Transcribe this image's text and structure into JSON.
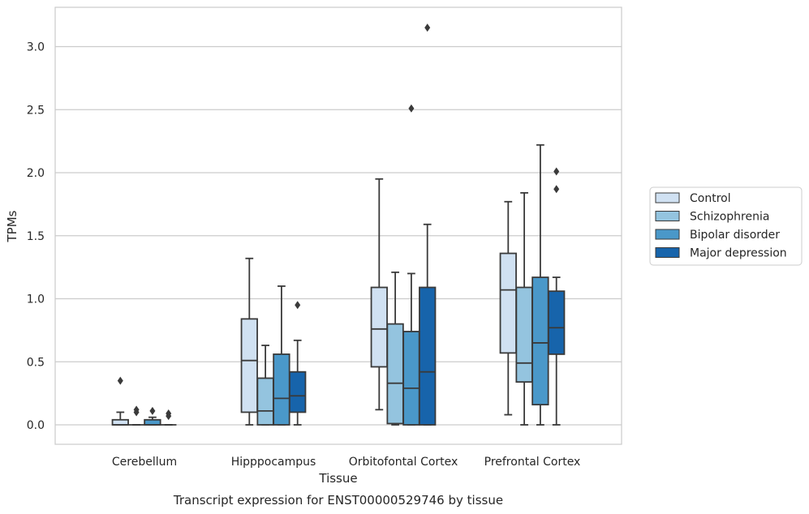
{
  "chart_data": {
    "type": "boxplot",
    "xlabel": "Tissue",
    "ylabel": "TPMs",
    "caption": "Transcript expression for ENST00000529746 by tissue",
    "ylim": [
      -0.15,
      3.3
    ],
    "yticks": [
      "0.0",
      "0.5",
      "1.0",
      "1.5",
      "2.0",
      "2.5",
      "3.0"
    ],
    "grid": true,
    "legend_position": "right",
    "categories": [
      "Cerebellum",
      "Hipppocampus",
      "Orbitofontal Cortex",
      "Prefrontal Cortex"
    ],
    "series": [
      {
        "name": "Control",
        "color": "#d0e1f2",
        "boxes": [
          {
            "whislo": 0.0,
            "q1": 0.0,
            "med": 0.0,
            "q3": 0.04,
            "whishi": 0.1,
            "fliers": [
              0.35
            ]
          },
          {
            "whislo": 0.0,
            "q1": 0.1,
            "med": 0.51,
            "q3": 0.84,
            "whishi": 1.32,
            "fliers": []
          },
          {
            "whislo": 0.12,
            "q1": 0.46,
            "med": 0.76,
            "q3": 1.09,
            "whishi": 1.95,
            "fliers": []
          },
          {
            "whislo": 0.08,
            "q1": 0.57,
            "med": 1.07,
            "q3": 1.36,
            "whishi": 1.77,
            "fliers": []
          }
        ]
      },
      {
        "name": "Schizophrenia",
        "color": "#94c4df",
        "boxes": [
          {
            "whislo": 0.0,
            "q1": 0.0,
            "med": 0.0,
            "q3": 0.0,
            "whishi": 0.0,
            "fliers": [
              0.1,
              0.12
            ]
          },
          {
            "whislo": 0.0,
            "q1": 0.0,
            "med": 0.11,
            "q3": 0.37,
            "whishi": 0.63,
            "fliers": []
          },
          {
            "whislo": 0.0,
            "q1": 0.01,
            "med": 0.33,
            "q3": 0.8,
            "whishi": 1.21,
            "fliers": []
          },
          {
            "whislo": 0.0,
            "q1": 0.34,
            "med": 0.49,
            "q3": 1.09,
            "whishi": 1.84,
            "fliers": []
          }
        ]
      },
      {
        "name": "Bipolar disorder",
        "color": "#4a98c9",
        "boxes": [
          {
            "whislo": 0.0,
            "q1": 0.0,
            "med": 0.0,
            "q3": 0.04,
            "whishi": 0.06,
            "fliers": [
              0.11
            ]
          },
          {
            "whislo": 0.0,
            "q1": 0.0,
            "med": 0.21,
            "q3": 0.56,
            "whishi": 1.1,
            "fliers": []
          },
          {
            "whislo": 0.0,
            "q1": 0.0,
            "med": 0.29,
            "q3": 0.74,
            "whishi": 1.2,
            "fliers": [
              2.51
            ]
          },
          {
            "whislo": 0.0,
            "q1": 0.16,
            "med": 0.65,
            "q3": 1.17,
            "whishi": 2.22,
            "fliers": []
          }
        ]
      },
      {
        "name": "Major depression",
        "color": "#1764ab",
        "boxes": [
          {
            "whislo": 0.0,
            "q1": 0.0,
            "med": 0.0,
            "q3": 0.0,
            "whishi": 0.0,
            "fliers": [
              0.07,
              0.09
            ]
          },
          {
            "whislo": 0.0,
            "q1": 0.1,
            "med": 0.23,
            "q3": 0.42,
            "whishi": 0.67,
            "fliers": [
              0.95
            ]
          },
          {
            "whislo": 0.0,
            "q1": 0.0,
            "med": 0.42,
            "q3": 1.09,
            "whishi": 1.59,
            "fliers": [
              3.15
            ]
          },
          {
            "whislo": 0.0,
            "q1": 0.56,
            "med": 0.77,
            "q3": 1.06,
            "whishi": 1.17,
            "fliers": [
              1.87,
              2.01
            ]
          }
        ]
      }
    ]
  }
}
